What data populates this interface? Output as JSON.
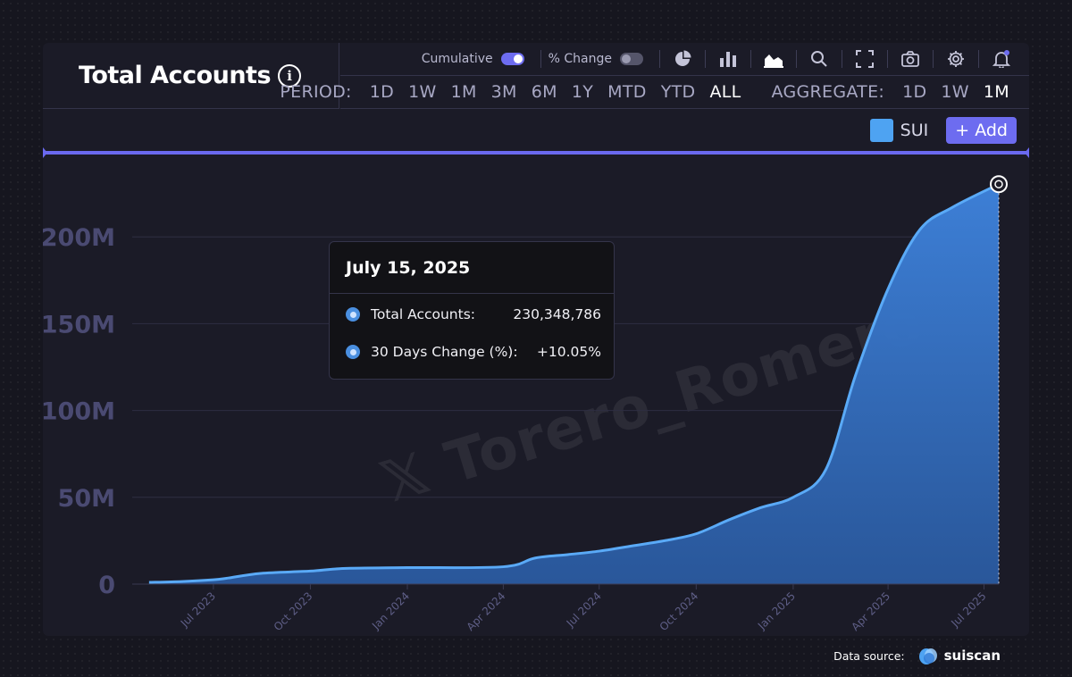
{
  "header": {
    "title": "Total Accounts",
    "info_icon": "i"
  },
  "toolbar": {
    "cumulative_label": "Cumulative",
    "cumulative_on": true,
    "pct_change_label": "% Change",
    "pct_change_on": false,
    "icons": [
      "pie-chart-icon",
      "bar-chart-icon",
      "area-chart-icon",
      "search-icon",
      "fullscreen-icon",
      "camera-icon",
      "gear-icon",
      "bell-icon"
    ]
  },
  "period": {
    "label": "PERIOD:",
    "options": [
      "1D",
      "1W",
      "1M",
      "3M",
      "6M",
      "1Y",
      "MTD",
      "YTD",
      "ALL"
    ],
    "active": "ALL"
  },
  "aggregate": {
    "label": "AGGREGATE:",
    "options": [
      "1D",
      "1W",
      "1M"
    ],
    "active": "1M"
  },
  "legend": {
    "series_name": "SUI",
    "add_label": "+ Add"
  },
  "tooltip": {
    "date": "July 15, 2025",
    "rows": [
      {
        "label": "Total Accounts:",
        "value": "230,348,786"
      },
      {
        "label": "30 Days Change (%):",
        "value": "+10.05%"
      }
    ]
  },
  "watermark": "𝕏 Torero_Romero",
  "footer": {
    "label": "Data source:",
    "brand": "suiscan"
  },
  "colors": {
    "accent": "#6d6cf0",
    "series": "#4ea3f2",
    "background": "#1b1b27"
  },
  "chart_data": {
    "type": "area",
    "title": "Total Accounts",
    "series": [
      {
        "name": "SUI",
        "color": "#4ea3f2"
      }
    ],
    "x": [
      "2023-05-01",
      "2023-06-01",
      "2023-07-01",
      "2023-07-15",
      "2023-08-15",
      "2023-10-01",
      "2023-11-01",
      "2024-01-01",
      "2024-04-01",
      "2024-05-01",
      "2024-06-01",
      "2024-07-01",
      "2024-08-01",
      "2024-09-01",
      "2024-10-01",
      "2024-11-01",
      "2024-12-01",
      "2025-01-01",
      "2025-02-01",
      "2025-03-01",
      "2025-04-01",
      "2025-05-01",
      "2025-06-01",
      "2025-07-15"
    ],
    "values": [
      1.0,
      1.5,
      2.5,
      3.5,
      6.2,
      7.5,
      9.0,
      9.5,
      10.0,
      15.0,
      17.0,
      19.0,
      22.0,
      25.0,
      29.0,
      37.0,
      44.0,
      50.0,
      66.0,
      120.0,
      170.0,
      204.0,
      217.0,
      230.348786
    ],
    "value_unit": "M",
    "x_ticks": [
      "Jul 2023",
      "Oct 2023",
      "Jan 2024",
      "Apr 2024",
      "Jul 2024",
      "Oct 2024",
      "Jan 2025",
      "Apr 2025",
      "Jul 2025"
    ],
    "y_ticks": [
      "0",
      "50M",
      "100M",
      "150M",
      "200M"
    ],
    "ylim": [
      0,
      230
    ],
    "grid": true,
    "highlight": {
      "date": "2025-07-15",
      "value": 230348786
    }
  }
}
